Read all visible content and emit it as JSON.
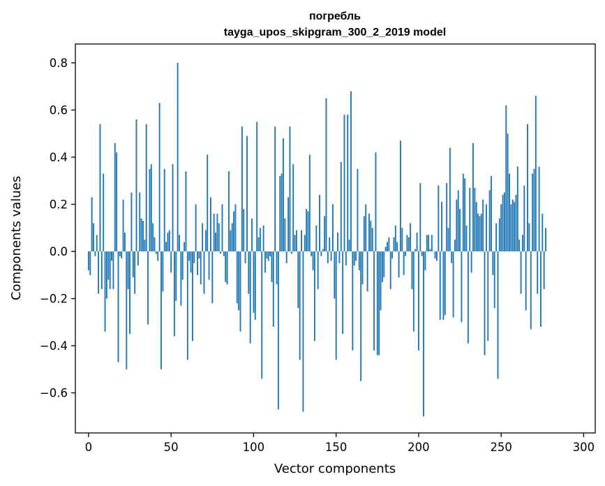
{
  "chart_data": {
    "type": "bar",
    "title_line1": "погребль",
    "title_line2": "tayga_upos_skipgram_300_2_2019 model",
    "xlabel": "Vector components",
    "ylabel": "Components values",
    "xlim": [
      -8,
      307
    ],
    "ylim": [
      -0.77,
      0.88
    ],
    "x_ticks": [
      0,
      50,
      100,
      150,
      200,
      250,
      300
    ],
    "x_tick_labels": [
      "0",
      "50",
      "100",
      "150",
      "200",
      "250",
      "300"
    ],
    "y_ticks": [
      -0.6,
      -0.4,
      -0.2,
      0.0,
      0.2,
      0.4,
      0.6,
      0.8
    ],
    "y_tick_labels": [
      "−0.6",
      "−0.4",
      "−0.2",
      "0.0",
      "0.2",
      "0.4",
      "0.6",
      "0.8"
    ],
    "bar_color": "#1f77b4",
    "grid": false,
    "values": [
      -0.08,
      -0.1,
      0.23,
      0.12,
      -0.02,
      0.07,
      -0.18,
      0.54,
      -0.16,
      0.33,
      -0.34,
      -0.2,
      -0.12,
      -0.16,
      -0.04,
      -0.16,
      0.46,
      0.42,
      -0.47,
      -0.02,
      -0.03,
      0.22,
      0.08,
      -0.5,
      -0.16,
      -0.35,
      0.25,
      -0.11,
      -0.18,
      0.56,
      -0.06,
      0.25,
      0.14,
      0.13,
      0.05,
      0.54,
      -0.31,
      0.35,
      0.37,
      0.12,
      0.06,
      -0.01,
      -0.04,
      0.63,
      -0.5,
      -0.17,
      0.35,
      0.04,
      0.08,
      0.09,
      -0.09,
      0.37,
      -0.36,
      -0.21,
      0.8,
      0.07,
      -0.23,
      -0.12,
      0.04,
      0.34,
      -0.46,
      -0.04,
      -0.09,
      -0.38,
      -0.05,
      0.2,
      -0.1,
      -0.03,
      -0.14,
      0.12,
      -0.18,
      0.09,
      0.41,
      -0.12,
      0.23,
      -0.22,
      0.16,
      0.08,
      0.16,
      0.12,
      -0.01,
      0.2,
      -0.02,
      -0.13,
      -0.14,
      0.34,
      0.09,
      0.12,
      0.17,
      0.2,
      -0.22,
      -0.25,
      -0.34,
      0.53,
      0.18,
      -0.05,
      0.49,
      -0.18,
      -0.39,
      0.14,
      -0.26,
      -0.29,
      0.55,
      0.06,
      0.1,
      -0.54,
      0.11,
      -0.09,
      -0.03,
      -0.04,
      -0.02,
      -0.13,
      -0.32,
      0.53,
      -0.14,
      -0.67,
      0.32,
      0.33,
      0.48,
      0.14,
      -0.05,
      0.23,
      0.53,
      -0.01,
      0.37,
      0.07,
      0.09,
      -0.24,
      -0.46,
      0.09,
      -0.68,
      0.07,
      0.18,
      0.17,
      0.41,
      -0.02,
      -0.08,
      -0.38,
      0.11,
      -0.16,
      0.24,
      -0.02,
      0.01,
      0.15,
      0.65,
      -0.05,
      0.06,
      -0.04,
      0.2,
      -0.2,
      -0.46,
      0.08,
      -0.05,
      0.38,
      -0.35,
      0.58,
      -0.06,
      0.58,
      0.05,
      0.68,
      -0.42,
      -0.06,
      -0.04,
      0.35,
      -0.08,
      -0.55,
      -0.14,
      0.15,
      0.2,
      -0.17,
      0.16,
      0.13,
      0.1,
      -0.42,
      0.42,
      -0.44,
      -0.44,
      -0.25,
      -0.13,
      -0.11,
      0.02,
      0.04,
      0.06,
      -0.16,
      -0.03,
      0.06,
      0.11,
      0.04,
      -0.11,
      0.47,
      0.1,
      -0.1,
      -0.02,
      0.07,
      0.06,
      0.12,
      -0.16,
      -0.34,
      0.01,
      0.08,
      -0.42,
      0.29,
      -0.02,
      -0.7,
      -0.08,
      0.07,
      0.07,
      0.01,
      0.07,
      0.0,
      -0.03,
      -0.04,
      0.28,
      -0.29,
      0.21,
      -0.29,
      -0.27,
      0.29,
      0.1,
      0.44,
      -0.05,
      -0.28,
      0.05,
      0.22,
      0.26,
      0.18,
      -0.3,
      0.33,
      0.31,
      0.11,
      -0.39,
      0.27,
      -0.09,
      0.46,
      0.27,
      0.21,
      0.16,
      0.15,
      0.16,
      0.22,
      -0.44,
      0.2,
      -0.38,
      0.26,
      0.32,
      -0.1,
      -0.24,
      0.12,
      -0.54,
      0.14,
      0.2,
      0.24,
      0.25,
      0.62,
      0.5,
      0.33,
      0.2,
      0.22,
      0.21,
      0.24,
      0.36,
      0.05,
      -0.18,
      0.07,
      0.28,
      -0.25,
      0.54,
      0.12,
      -0.33,
      0.33,
      0.35,
      0.66,
      -0.18,
      0.36,
      -0.32,
      0.16,
      -0.16,
      0.1
    ]
  }
}
